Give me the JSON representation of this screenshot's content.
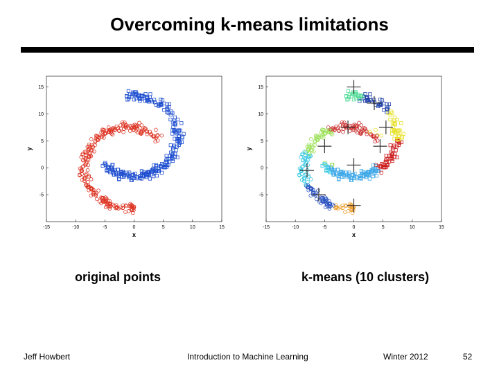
{
  "slide": {
    "title": "Overcoming k-means limitations",
    "caption_left": "original points",
    "caption_right": "k-means (10 clusters)"
  },
  "footer": {
    "author": "Jeff Howbert",
    "course": "Introduction to Machine Learning",
    "term": "Winter 2012",
    "page": "52"
  },
  "chart_data": [
    {
      "type": "scatter",
      "xlabel": "x",
      "ylabel": "y",
      "xlim": [
        -15,
        15
      ],
      "ylim": [
        -10,
        17
      ],
      "xticks": [
        -15,
        -10,
        -5,
        0,
        5,
        10,
        15
      ],
      "yticks": [
        -5,
        0,
        5,
        10,
        15
      ],
      "series": [
        {
          "marker": "square",
          "color": "#1f4fd0",
          "arc": {
            "center": [
              0,
              6
            ],
            "radius": 7.5,
            "start_deg": 100,
            "end_deg": -135,
            "spread": 1.2,
            "count": 260
          }
        },
        {
          "marker": "circle",
          "color": "#dd3322",
          "arc": {
            "center": [
              -1,
              0
            ],
            "radius": 7.5,
            "start_deg": 45,
            "end_deg": 280,
            "spread": 1.2,
            "count": 260
          }
        }
      ]
    },
    {
      "type": "scatter",
      "xlabel": "x",
      "ylabel": "y",
      "xlim": [
        -15,
        15
      ],
      "ylim": [
        -10,
        17
      ],
      "xticks": [
        -15,
        -10,
        -5,
        0,
        5,
        10,
        15
      ],
      "yticks": [
        -5,
        0,
        5,
        10,
        15
      ],
      "clusters": [
        {
          "color": "#55dd99",
          "centroid": [
            0,
            15
          ]
        },
        {
          "color": "#2244aa",
          "centroid": [
            3.5,
            12
          ]
        },
        {
          "color": "#e6e022",
          "centroid": [
            5.5,
            7.5
          ]
        },
        {
          "color": "#cc1f1f",
          "centroid": [
            4.5,
            4
          ]
        },
        {
          "color": "#3fa8e8",
          "centroid": [
            0,
            0.5
          ]
        },
        {
          "color": "#cc3333",
          "centroid": [
            -1,
            7.5
          ]
        },
        {
          "color": "#99e055",
          "centroid": [
            -5,
            4
          ]
        },
        {
          "color": "#33c6e0",
          "centroid": [
            -8,
            -0.5
          ]
        },
        {
          "color": "#2a52c0",
          "centroid": [
            -6,
            -5
          ]
        },
        {
          "color": "#f0a030",
          "centroid": [
            0,
            -7
          ]
        }
      ]
    }
  ]
}
